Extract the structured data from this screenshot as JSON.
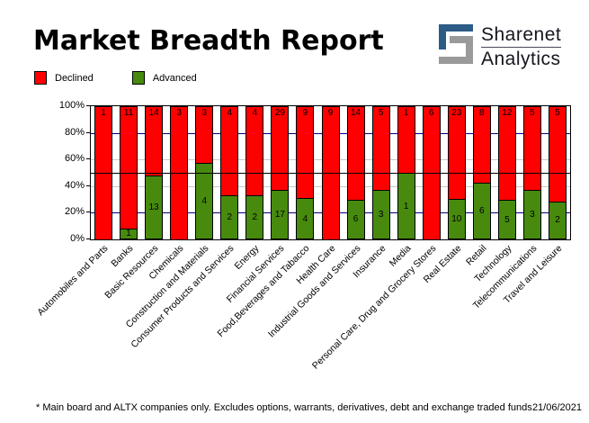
{
  "header": {
    "title": "Market Breadth Report",
    "logo": {
      "name": "Sharenet",
      "division": "Analytics"
    }
  },
  "legend": {
    "declined_label": "Declined",
    "advanced_label": "Advanced"
  },
  "colors": {
    "declined": "#FF0000",
    "advanced": "#478A0D",
    "grid_navy": "#000080",
    "grid_silver": "#C8C8C8",
    "reference_line": "#000000",
    "logo_blue": "#2D5C87",
    "logo_gray": "#9A9A9A"
  },
  "chart_data": {
    "type": "bar",
    "subtype": "stacked-100-percent",
    "title": "Market Breadth Report",
    "categories": [
      "Automobiles and Parts",
      "Banks",
      "Basic Resources",
      "Chemicals",
      "Construction and Materials",
      "Consumer Products and Services",
      "Energy",
      "Financial Services",
      "Food,Beverages and Tabacco",
      "Health Care",
      "Industrial Goods and Services",
      "Insurance",
      "Media",
      "Personal Care, Drug and Grocery Stores",
      "Real Estate",
      "Retail",
      "Technology",
      "Telecommunications",
      "Travel and Leisure"
    ],
    "series": [
      {
        "name": "Declined",
        "values": [
          1,
          11,
          14,
          3,
          3,
          4,
          4,
          29,
          9,
          9,
          14,
          5,
          1,
          6,
          23,
          8,
          12,
          5,
          5
        ]
      },
      {
        "name": "Advanced",
        "values": [
          0,
          1,
          13,
          0,
          4,
          2,
          2,
          17,
          4,
          0,
          6,
          3,
          1,
          0,
          10,
          6,
          5,
          3,
          2
        ]
      }
    ],
    "y_tick_labels": [
      "100%",
      "80%",
      "60%",
      "40%",
      "20%",
      "0%"
    ],
    "ylim": [
      0,
      100
    ],
    "gridlines": [
      {
        "percent": 80,
        "style": "navy"
      },
      {
        "percent": 60,
        "style": "silver"
      },
      {
        "percent": 40,
        "style": "silver"
      },
      {
        "percent": 20,
        "style": "navy"
      }
    ],
    "reference_line_percent": 50,
    "legend_position": "top-left"
  },
  "footer": {
    "note": "* Main board and ALTX companies only. Excludes options, warrants, derivatives, debt and exchange traded funds",
    "date": "21/06/2021"
  }
}
